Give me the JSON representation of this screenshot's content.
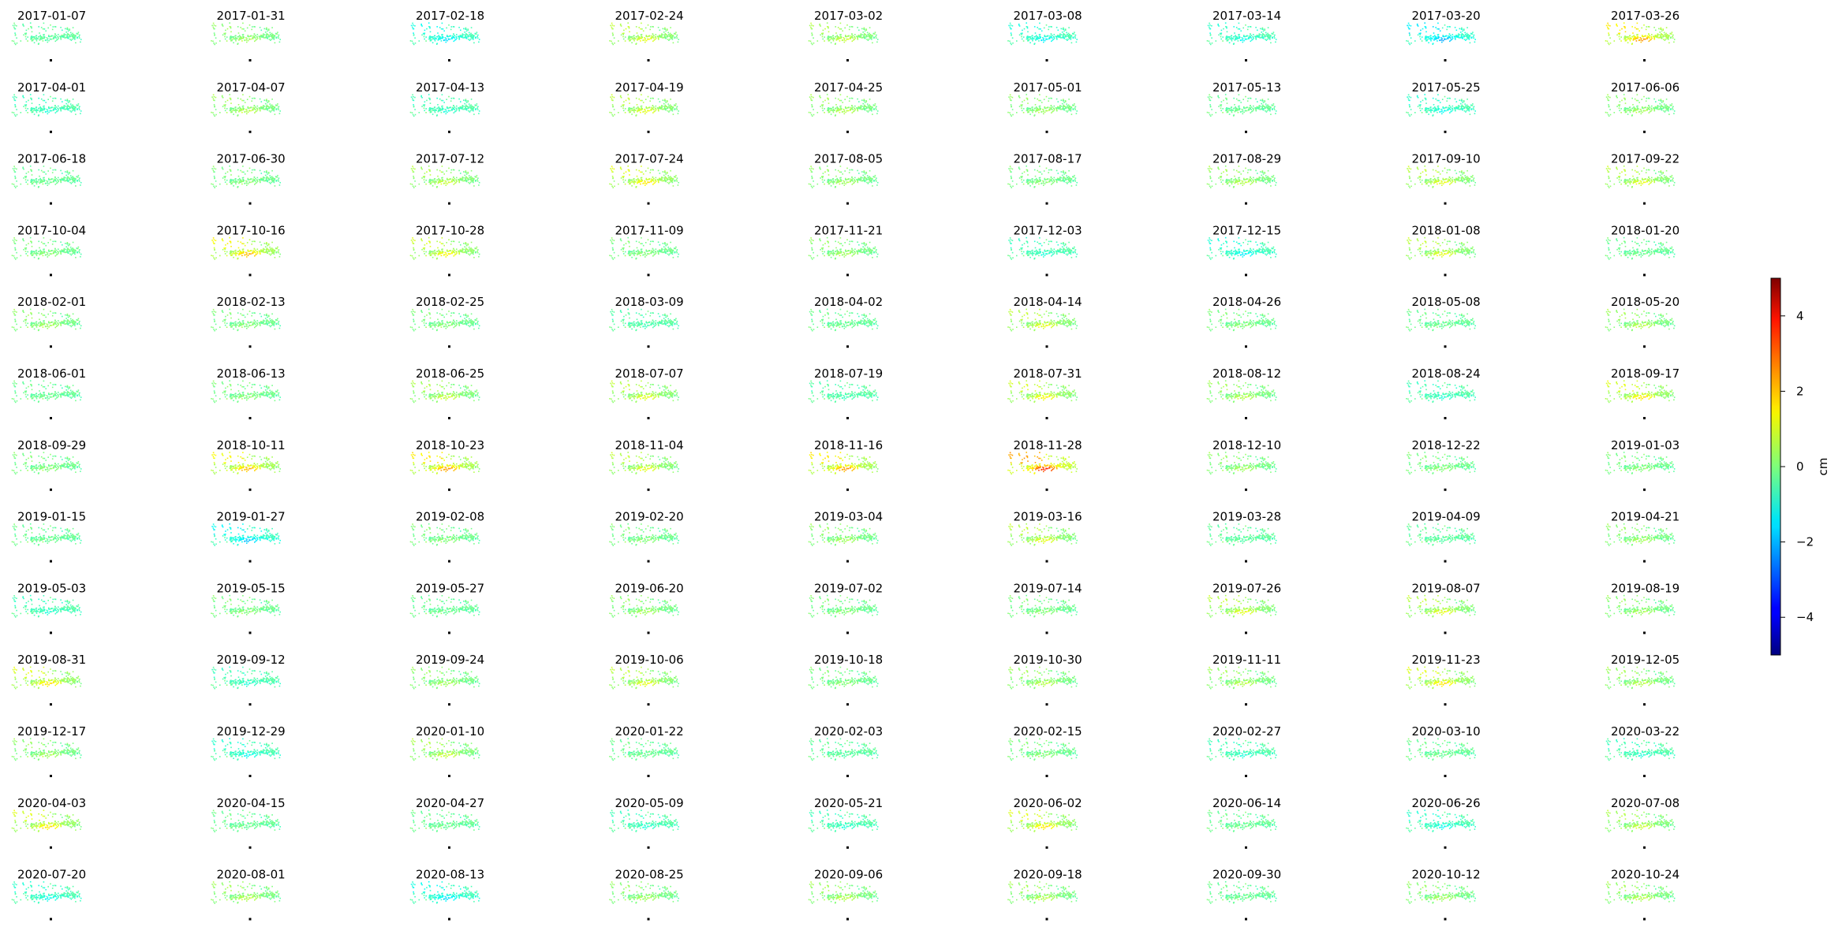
{
  "chart_data": {
    "type": "scatter",
    "panel_titles": [
      "2017-01-07",
      "2017-01-31",
      "2017-02-18",
      "2017-02-24",
      "2017-03-02",
      "2017-03-08",
      "2017-03-14",
      "2017-03-20",
      "2017-03-26",
      "2017-04-01",
      "2017-04-07",
      "2017-04-13",
      "2017-04-19",
      "2017-04-25",
      "2017-05-01",
      "2017-05-13",
      "2017-05-25",
      "2017-06-06",
      "2017-06-18",
      "2017-06-30",
      "2017-07-12",
      "2017-07-24",
      "2017-08-05",
      "2017-08-17",
      "2017-08-29",
      "2017-09-10",
      "2017-09-22",
      "2017-10-04",
      "2017-10-16",
      "2017-10-28",
      "2017-11-09",
      "2017-11-21",
      "2017-12-03",
      "2017-12-15",
      "2018-01-08",
      "2018-01-20",
      "2018-02-01",
      "2018-02-13",
      "2018-02-25",
      "2018-03-09",
      "2018-04-02",
      "2018-04-14",
      "2018-04-26",
      "2018-05-08",
      "2018-05-20",
      "2018-06-01",
      "2018-06-13",
      "2018-06-25",
      "2018-07-07",
      "2018-07-19",
      "2018-07-31",
      "2018-08-12",
      "2018-08-24",
      "2018-09-17",
      "2018-09-29",
      "2018-10-11",
      "2018-10-23",
      "2018-11-04",
      "2018-11-16",
      "2018-11-28",
      "2018-12-10",
      "2018-12-22",
      "2019-01-03",
      "2019-01-15",
      "2019-01-27",
      "2019-02-08",
      "2019-02-20",
      "2019-03-04",
      "2019-03-16",
      "2019-03-28",
      "2019-04-09",
      "2019-04-21",
      "2019-05-03",
      "2019-05-15",
      "2019-05-27",
      "2019-06-20",
      "2019-07-02",
      "2019-07-14",
      "2019-07-26",
      "2019-08-07",
      "2019-08-19",
      "2019-08-31",
      "2019-09-12",
      "2019-09-24",
      "2019-10-06",
      "2019-10-18",
      "2019-10-30",
      "2019-11-11",
      "2019-11-23",
      "2019-12-05",
      "2019-12-17",
      "2019-12-29",
      "2020-01-10",
      "2020-01-22",
      "2020-02-03",
      "2020-02-15",
      "2020-02-27",
      "2020-03-10",
      "2020-03-22",
      "2020-04-03",
      "2020-04-15",
      "2020-04-27",
      "2020-05-09",
      "2020-05-21",
      "2020-06-02",
      "2020-06-14",
      "2020-06-26",
      "2020-07-08",
      "2020-07-20",
      "2020-08-01",
      "2020-08-13",
      "2020-08-25",
      "2020-09-06",
      "2020-09-18",
      "2020-09-30",
      "2020-10-12",
      "2020-10-24"
    ],
    "panel_mean_cm": [
      0.0,
      0.8,
      -1.2,
      1.5,
      1.2,
      -1.0,
      -0.8,
      -1.8,
      2.8,
      -0.5,
      1.0,
      -0.5,
      1.5,
      1.0,
      0.8,
      0.2,
      -0.8,
      0.8,
      0.2,
      0.5,
      1.2,
      2.0,
      0.8,
      0.5,
      1.0,
      1.5,
      1.5,
      0.5,
      2.5,
      1.8,
      0.5,
      0.8,
      -0.5,
      -1.0,
      1.5,
      0.2,
      0.8,
      0.5,
      0.5,
      -0.2,
      0.2,
      1.5,
      0.5,
      0.2,
      1.0,
      0.2,
      0.5,
      1.2,
      1.5,
      -0.2,
      1.8,
      1.0,
      -0.5,
      2.0,
      0.5,
      2.5,
      2.8,
      1.5,
      2.8,
      4.0,
      0.8,
      0.5,
      0.5,
      0.2,
      -1.5,
      0.5,
      0.5,
      0.8,
      1.5,
      0.0,
      0.0,
      0.8,
      -0.5,
      0.5,
      0.2,
      0.8,
      0.5,
      0.5,
      1.5,
      1.5,
      0.8,
      2.0,
      -0.5,
      0.8,
      1.5,
      0.5,
      1.0,
      1.0,
      2.0,
      1.0,
      0.8,
      -0.8,
      1.2,
      0.2,
      0.0,
      0.5,
      -0.5,
      0.2,
      -0.5,
      2.0,
      0.2,
      0.2,
      -0.5,
      -0.5,
      2.0,
      0.2,
      -0.8,
      1.2,
      -0.8,
      1.0,
      -1.2,
      0.8,
      1.0,
      1.0,
      0.2,
      0.8,
      1.0
    ],
    "colormap": "jet",
    "colorbar": {
      "label": "cm",
      "range": [
        -5,
        5
      ],
      "ticks": [
        -4,
        -2,
        0,
        2,
        4
      ],
      "tick_labels": [
        "−4",
        "−2",
        "0",
        "2",
        "4"
      ]
    },
    "axes_visible": false,
    "marker_color": "#000000"
  }
}
